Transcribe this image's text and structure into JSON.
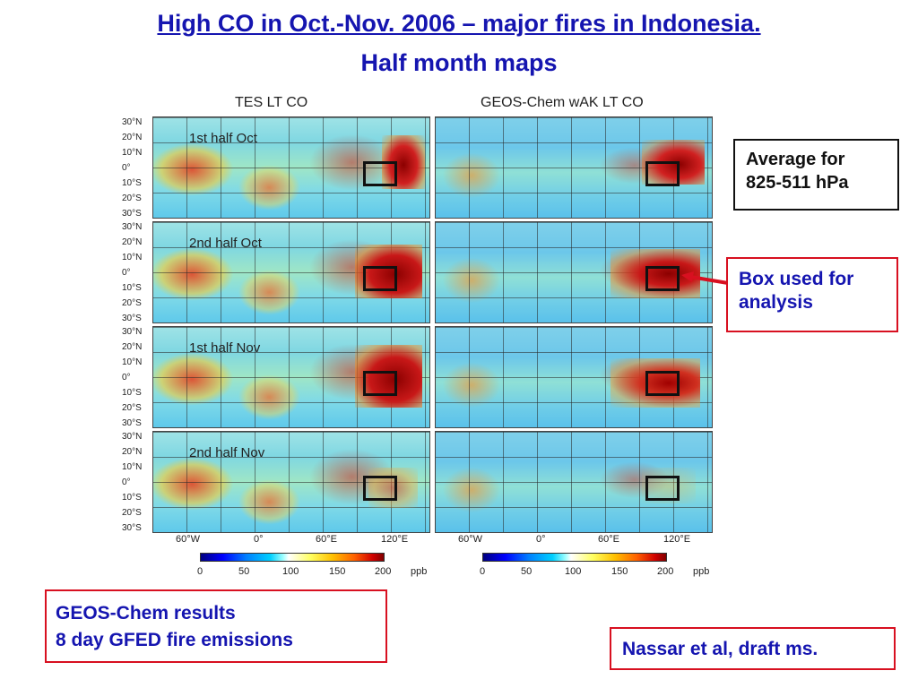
{
  "title": {
    "line1": "High CO in Oct.-Nov. 2006 – major fires in Indonesia.",
    "line2": "Half month maps"
  },
  "panels": {
    "left_title": "TES LT CO",
    "right_title": "GEOS-Chem wAK LT CO",
    "periods": [
      "1st half Oct",
      "2nd half Oct",
      "1st half Nov",
      "2nd half Nov"
    ]
  },
  "axes": {
    "lat_labels": [
      "30°N",
      "20°N",
      "10°N",
      "0°",
      "10°S",
      "20°S",
      "30°S"
    ],
    "lon_labels": [
      "60°W",
      "0°",
      "60°E",
      "120°E"
    ]
  },
  "colorbar": {
    "ticks": [
      "0",
      "50",
      "100",
      "150",
      "200"
    ],
    "unit": "ppb"
  },
  "callouts": {
    "average": [
      "Average for",
      "825-511 hPa"
    ],
    "box": [
      "Box used for",
      "analysis"
    ],
    "geos": [
      "GEOS-Chem results",
      "8 day GFED fire emissions"
    ],
    "citation": "Nassar et al, draft ms."
  },
  "colors": {
    "title": "#1515b0",
    "callout_border": "#d81020"
  }
}
